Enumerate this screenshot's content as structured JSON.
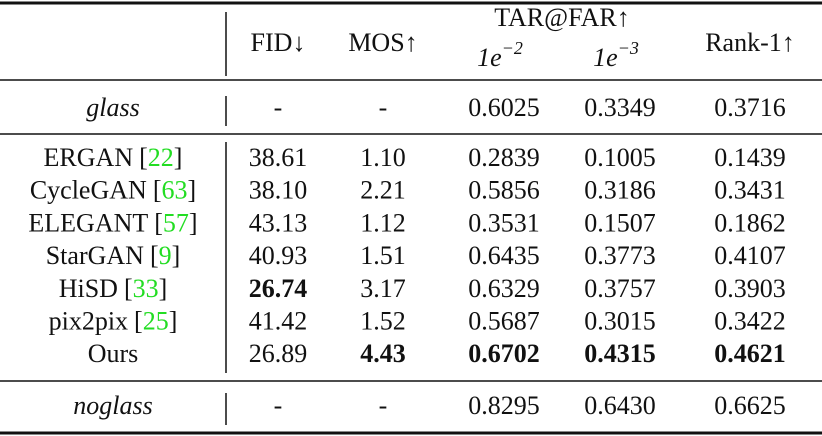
{
  "table": {
    "header": {
      "columns": [
        "FID↓",
        "MOS↑"
      ],
      "group": "TAR@FAR↑",
      "subcolumns": [
        {
          "base": "1e",
          "exp": "−2"
        },
        {
          "base": "1e",
          "exp": "−3"
        }
      ],
      "last": "Rank-1↑"
    },
    "glass": {
      "label": "glass",
      "cells": [
        "-",
        "-",
        "0.6025",
        "0.3349",
        "0.3716"
      ]
    },
    "rows": [
      {
        "method": "ERGAN",
        "citation": [
          "[",
          "22",
          "]"
        ],
        "cells": [
          "38.61",
          "1.10",
          "0.2839",
          "0.1005",
          "0.1439"
        ],
        "bold": []
      },
      {
        "method": "CycleGAN",
        "citation": [
          "[",
          "63",
          "]"
        ],
        "cells": [
          "38.10",
          "2.21",
          "0.5856",
          "0.3186",
          "0.3431"
        ],
        "bold": []
      },
      {
        "method": "ELEGANT",
        "citation": [
          "[",
          "57",
          "]"
        ],
        "cells": [
          "43.13",
          "1.12",
          "0.3531",
          "0.1507",
          "0.1862"
        ],
        "bold": []
      },
      {
        "method": "StarGAN",
        "citation": [
          "[",
          "9",
          "]"
        ],
        "cells": [
          "40.93",
          "1.51",
          "0.6435",
          "0.3773",
          "0.4107"
        ],
        "bold": []
      },
      {
        "method": "HiSD",
        "citation": [
          "[",
          "33",
          "]"
        ],
        "cells": [
          "26.74",
          "3.17",
          "0.6329",
          "0.3757",
          "0.3903"
        ],
        "bold": [
          0
        ]
      },
      {
        "method": "pix2pix",
        "citation": [
          "[",
          "25",
          "]"
        ],
        "cells": [
          "41.42",
          "1.52",
          "0.5687",
          "0.3015",
          "0.3422"
        ],
        "bold": []
      },
      {
        "method": "Ours",
        "cells": [
          "26.89",
          "4.43",
          "0.6702",
          "0.4315",
          "0.4621"
        ],
        "bold": [
          1,
          2,
          3,
          4
        ]
      }
    ],
    "noglass": {
      "label": "noglass",
      "cells": [
        "-",
        "-",
        "0.8295",
        "0.6430",
        "0.6625"
      ]
    }
  }
}
